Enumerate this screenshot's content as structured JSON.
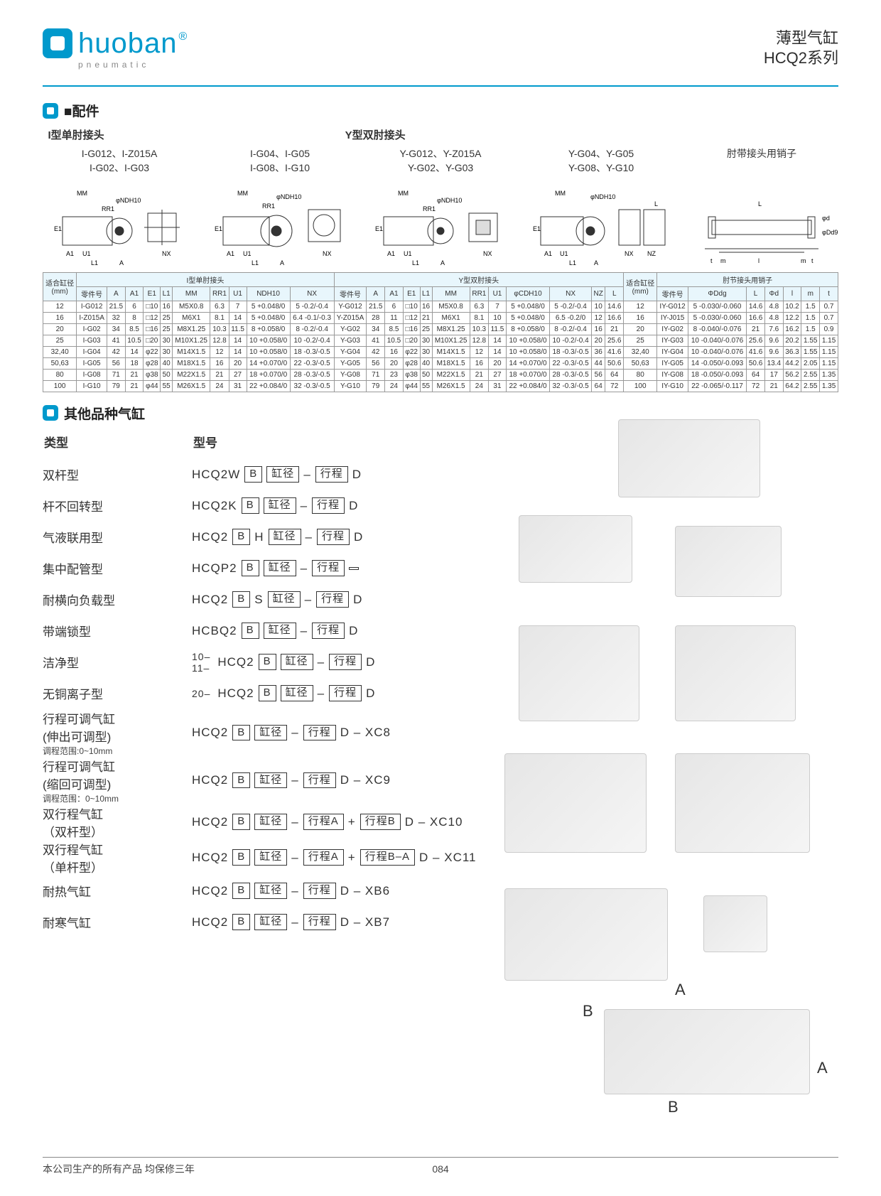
{
  "header": {
    "brand": "huoban",
    "brand_sub": "pneumatic",
    "reg": "®",
    "title_line1": "薄型气缸",
    "title_line2": "HCQ2系列"
  },
  "section_accessories": "■配件",
  "section_other": "其他品种气缸",
  "diag": {
    "group_i_title": "I型单肘接头",
    "group_y_title": "Y型双肘接头",
    "col_i1": "I-G012、I-Z015A\nI-G02、I-G03",
    "col_i2": "I-G04、I-G05\nI-G08、I-G10",
    "col_y1": "Y-G012、Y-Z015A\nY-G02、Y-G03",
    "col_y2": "Y-G04、Y-G05\nY-G08、Y-G10",
    "col_pin": "肘带接头用销子",
    "dim_labels": [
      "MM",
      "RR1",
      "E1",
      "A1",
      "U1",
      "L1",
      "A",
      "NX",
      "φNDH10",
      "NZ",
      "L",
      "m",
      "t",
      "l",
      "φd",
      "φDd9"
    ]
  },
  "table": {
    "bore_header": "适合缸径\n(mm)",
    "group_i": "I型单肘接头",
    "group_y": "Y型双肘接头",
    "bore_header2": "适合缸径\n(mm)",
    "group_pin": "肘节接头用销子",
    "cols_i": [
      "零件号",
      "A",
      "A1",
      "E1",
      "L1",
      "MM",
      "RR1",
      "U1",
      "NDH10",
      "NX"
    ],
    "cols_y": [
      "零件号",
      "A",
      "A1",
      "E1",
      "L1",
      "MM",
      "RR1",
      "U1",
      "φCDH10",
      "NX",
      "NZ",
      "L"
    ],
    "cols_pin": [
      "零件号",
      "ΦDdg",
      "L",
      "Φd",
      "l",
      "m",
      "t"
    ],
    "rows": [
      {
        "bore": "12",
        "i": [
          "I-G012",
          "21.5",
          "6",
          "□10",
          "16",
          "M5X0.8",
          "6.3",
          "7",
          "5 +0.048/0",
          "5 -0.2/-0.4"
        ],
        "y": [
          "Y-G012",
          "21.5",
          "6",
          "□10",
          "16",
          "M5X0.8",
          "6.3",
          "7",
          "5 +0.048/0",
          "5 -0.2/-0.4",
          "10",
          "14.6"
        ],
        "b2": "12",
        "p": [
          "IY-G012",
          "5 -0.030/-0.060",
          "14.6",
          "4.8",
          "10.2",
          "1.5",
          "0.7"
        ]
      },
      {
        "bore": "16",
        "i": [
          "I-Z015A",
          "32",
          "8",
          "□12",
          "25",
          "M6X1",
          "8.1",
          "14",
          "5 +0.048/0",
          "6.4 -0.1/-0.3"
        ],
        "y": [
          "Y-Z015A",
          "28",
          "11",
          "□12",
          "21",
          "M6X1",
          "8.1",
          "10",
          "5 +0.048/0",
          "6.5 -0.2/0",
          "12",
          "16.6"
        ],
        "b2": "16",
        "p": [
          "IY-J015",
          "5 -0.030/-0.060",
          "16.6",
          "4.8",
          "12.2",
          "1.5",
          "0.7"
        ]
      },
      {
        "bore": "20",
        "i": [
          "I-G02",
          "34",
          "8.5",
          "□16",
          "25",
          "M8X1.25",
          "10.3",
          "11.5",
          "8 +0.058/0",
          "8 -0.2/-0.4"
        ],
        "y": [
          "Y-G02",
          "34",
          "8.5",
          "□16",
          "25",
          "M8X1.25",
          "10.3",
          "11.5",
          "8 +0.058/0",
          "8 -0.2/-0.4",
          "16",
          "21"
        ],
        "b2": "20",
        "p": [
          "IY-G02",
          "8 -0.040/-0.076",
          "21",
          "7.6",
          "16.2",
          "1.5",
          "0.9"
        ]
      },
      {
        "bore": "25",
        "i": [
          "I-G03",
          "41",
          "10.5",
          "□20",
          "30",
          "M10X1.25",
          "12.8",
          "14",
          "10 +0.058/0",
          "10 -0.2/-0.4"
        ],
        "y": [
          "Y-G03",
          "41",
          "10.5",
          "□20",
          "30",
          "M10X1.25",
          "12.8",
          "14",
          "10 +0.058/0",
          "10 -0.2/-0.4",
          "20",
          "25.6"
        ],
        "b2": "25",
        "p": [
          "IY-G03",
          "10 -0.040/-0.076",
          "25.6",
          "9.6",
          "20.2",
          "1.55",
          "1.15"
        ]
      },
      {
        "bore": "32,40",
        "i": [
          "I-G04",
          "42",
          "14",
          "φ22",
          "30",
          "M14X1.5",
          "12",
          "14",
          "10 +0.058/0",
          "18 -0.3/-0.5"
        ],
        "y": [
          "Y-G04",
          "42",
          "16",
          "φ22",
          "30",
          "M14X1.5",
          "12",
          "14",
          "10 +0.058/0",
          "18 -0.3/-0.5",
          "36",
          "41.6"
        ],
        "b2": "32,40",
        "p": [
          "IY-G04",
          "10 -0.040/-0.076",
          "41.6",
          "9.6",
          "36.3",
          "1.55",
          "1.15"
        ]
      },
      {
        "bore": "50,63",
        "i": [
          "I-G05",
          "56",
          "18",
          "φ28",
          "40",
          "M18X1.5",
          "16",
          "20",
          "14 +0.070/0",
          "22 -0.3/-0.5"
        ],
        "y": [
          "Y-G05",
          "56",
          "20",
          "φ28",
          "40",
          "M18X1.5",
          "16",
          "20",
          "14 +0.070/0",
          "22 -0.3/-0.5",
          "44",
          "50.6"
        ],
        "b2": "50,63",
        "p": [
          "IY-G05",
          "14 -0.050/-0.093",
          "50.6",
          "13.4",
          "44.2",
          "2.05",
          "1.15"
        ]
      },
      {
        "bore": "80",
        "i": [
          "I-G08",
          "71",
          "21",
          "φ38",
          "50",
          "M22X1.5",
          "21",
          "27",
          "18 +0.070/0",
          "28 -0.3/-0.5"
        ],
        "y": [
          "Y-G08",
          "71",
          "23",
          "φ38",
          "50",
          "M22X1.5",
          "21",
          "27",
          "18 +0.070/0",
          "28 -0.3/-0.5",
          "56",
          "64"
        ],
        "b2": "80",
        "p": [
          "IY-G08",
          "18 -0.050/-0.093",
          "64",
          "17",
          "56.2",
          "2.55",
          "1.35"
        ]
      },
      {
        "bore": "100",
        "i": [
          "I-G10",
          "79",
          "21",
          "φ44",
          "55",
          "M26X1.5",
          "24",
          "31",
          "22 +0.084/0",
          "32 -0.3/-0.5"
        ],
        "y": [
          "Y-G10",
          "79",
          "24",
          "φ44",
          "55",
          "M26X1.5",
          "24",
          "31",
          "22 +0.084/0",
          "32 -0.3/-0.5",
          "64",
          "72"
        ],
        "b2": "100",
        "p": [
          "IY-G10",
          "22 -0.065/-0.117",
          "72",
          "21",
          "64.2",
          "2.55",
          "1.35"
        ]
      }
    ]
  },
  "ot_header": {
    "c1": "类型",
    "c2": "型号"
  },
  "types": [
    {
      "name": "双杆型",
      "tokens": [
        {
          "t": "plain",
          "v": "HCQ2W"
        },
        {
          "t": "box",
          "v": "B"
        },
        {
          "t": "box",
          "v": "缸径"
        },
        {
          "t": "plain",
          "v": "–"
        },
        {
          "t": "box",
          "v": "行程"
        },
        {
          "t": "plain",
          "v": "D"
        }
      ]
    },
    {
      "name": "杆不回转型",
      "tokens": [
        {
          "t": "plain",
          "v": "HCQ2K"
        },
        {
          "t": "box",
          "v": "B"
        },
        {
          "t": "box",
          "v": "缸径"
        },
        {
          "t": "plain",
          "v": "–"
        },
        {
          "t": "box",
          "v": "行程"
        },
        {
          "t": "plain",
          "v": "D"
        }
      ]
    },
    {
      "name": "气液联用型",
      "tokens": [
        {
          "t": "plain",
          "v": "HCQ2"
        },
        {
          "t": "box",
          "v": "B"
        },
        {
          "t": "plain",
          "v": "H"
        },
        {
          "t": "box",
          "v": "缸径"
        },
        {
          "t": "plain",
          "v": "–"
        },
        {
          "t": "box",
          "v": "行程"
        },
        {
          "t": "plain",
          "v": "D"
        }
      ]
    },
    {
      "name": "集中配管型",
      "tokens": [
        {
          "t": "plain",
          "v": "HCQP2"
        },
        {
          "t": "box",
          "v": "B"
        },
        {
          "t": "box",
          "v": "缸径"
        },
        {
          "t": "plain",
          "v": "–"
        },
        {
          "t": "box",
          "v": "行程"
        },
        {
          "t": "box",
          "v": " "
        }
      ]
    },
    {
      "name": "耐横向负载型",
      "tokens": [
        {
          "t": "plain",
          "v": "HCQ2"
        },
        {
          "t": "box",
          "v": "B"
        },
        {
          "t": "plain",
          "v": "S"
        },
        {
          "t": "box",
          "v": "缸径"
        },
        {
          "t": "plain",
          "v": "–"
        },
        {
          "t": "box",
          "v": "行程"
        },
        {
          "t": "plain",
          "v": "D"
        }
      ]
    },
    {
      "name": "带端锁型",
      "tokens": [
        {
          "t": "plain",
          "v": "HCBQ2"
        },
        {
          "t": "box",
          "v": "B"
        },
        {
          "t": "box",
          "v": "缸径"
        },
        {
          "t": "plain",
          "v": "–"
        },
        {
          "t": "box",
          "v": "行程"
        },
        {
          "t": "plain",
          "v": "D"
        }
      ]
    },
    {
      "name": "洁净型",
      "prefix": [
        "10–",
        "11–"
      ],
      "tokens": [
        {
          "t": "plain",
          "v": "HCQ2"
        },
        {
          "t": "box",
          "v": "B"
        },
        {
          "t": "box",
          "v": "缸径"
        },
        {
          "t": "plain",
          "v": "–"
        },
        {
          "t": "box",
          "v": "行程"
        },
        {
          "t": "plain",
          "v": "D"
        }
      ]
    },
    {
      "name": "无铜离子型",
      "prefix": [
        "20–"
      ],
      "tokens": [
        {
          "t": "plain",
          "v": "HCQ2"
        },
        {
          "t": "box",
          "v": "B"
        },
        {
          "t": "box",
          "v": "缸径"
        },
        {
          "t": "plain",
          "v": "–"
        },
        {
          "t": "box",
          "v": "行程"
        },
        {
          "t": "plain",
          "v": "D"
        }
      ]
    },
    {
      "name": "行程可调气缸\n(伸出可调型)",
      "sub": "调程范围:0~10mm",
      "tokens": [
        {
          "t": "plain",
          "v": "HCQ2"
        },
        {
          "t": "box",
          "v": "B"
        },
        {
          "t": "box",
          "v": "缸径"
        },
        {
          "t": "plain",
          "v": "–"
        },
        {
          "t": "box",
          "v": "行程"
        },
        {
          "t": "plain",
          "v": "D – XC8"
        }
      ]
    },
    {
      "name": "行程可调气缸\n(缩回可调型)",
      "sub": "调程范围：0~10mm",
      "tokens": [
        {
          "t": "plain",
          "v": "HCQ2"
        },
        {
          "t": "box",
          "v": "B"
        },
        {
          "t": "box",
          "v": "缸径"
        },
        {
          "t": "plain",
          "v": "–"
        },
        {
          "t": "box",
          "v": "行程"
        },
        {
          "t": "plain",
          "v": "D – XC9"
        }
      ]
    },
    {
      "name": "双行程气缸\n（双杆型）",
      "tokens": [
        {
          "t": "plain",
          "v": "HCQ2"
        },
        {
          "t": "box",
          "v": "B"
        },
        {
          "t": "box",
          "v": "缸径"
        },
        {
          "t": "plain",
          "v": "–"
        },
        {
          "t": "box",
          "v": "行程A"
        },
        {
          "t": "plain",
          "v": "+"
        },
        {
          "t": "box",
          "v": "行程B"
        },
        {
          "t": "plain",
          "v": "D  – XC10"
        }
      ]
    },
    {
      "name": "双行程气缸\n（单杆型）",
      "tokens": [
        {
          "t": "plain",
          "v": "HCQ2"
        },
        {
          "t": "box",
          "v": "B"
        },
        {
          "t": "box",
          "v": "缸径"
        },
        {
          "t": "plain",
          "v": "–"
        },
        {
          "t": "box",
          "v": "行程A"
        },
        {
          "t": "plain",
          "v": "+"
        },
        {
          "t": "box",
          "v": "行程B–A"
        },
        {
          "t": "plain",
          "v": "D  – XC11"
        }
      ]
    },
    {
      "name": "耐热气缸",
      "tokens": [
        {
          "t": "plain",
          "v": "HCQ2"
        },
        {
          "t": "box",
          "v": "B"
        },
        {
          "t": "box",
          "v": "缸径"
        },
        {
          "t": "plain",
          "v": "–"
        },
        {
          "t": "box",
          "v": "行程"
        },
        {
          "t": "plain",
          "v": "D – XB6"
        }
      ]
    },
    {
      "name": "耐寒气缸",
      "tokens": [
        {
          "t": "plain",
          "v": "HCQ2"
        },
        {
          "t": "box",
          "v": "B"
        },
        {
          "t": "box",
          "v": "缸径"
        },
        {
          "t": "plain",
          "v": "–"
        },
        {
          "t": "box",
          "v": "行程"
        },
        {
          "t": "plain",
          "v": "D – XB7"
        }
      ]
    }
  ],
  "labels": {
    "A": "A",
    "B": "B"
  },
  "footer": {
    "left": "本公司生产的所有产品  均保修三年",
    "page": "084"
  },
  "colors": {
    "accent": "#0099cc",
    "header_bg": "#e8f6fc",
    "border": "#999999"
  }
}
